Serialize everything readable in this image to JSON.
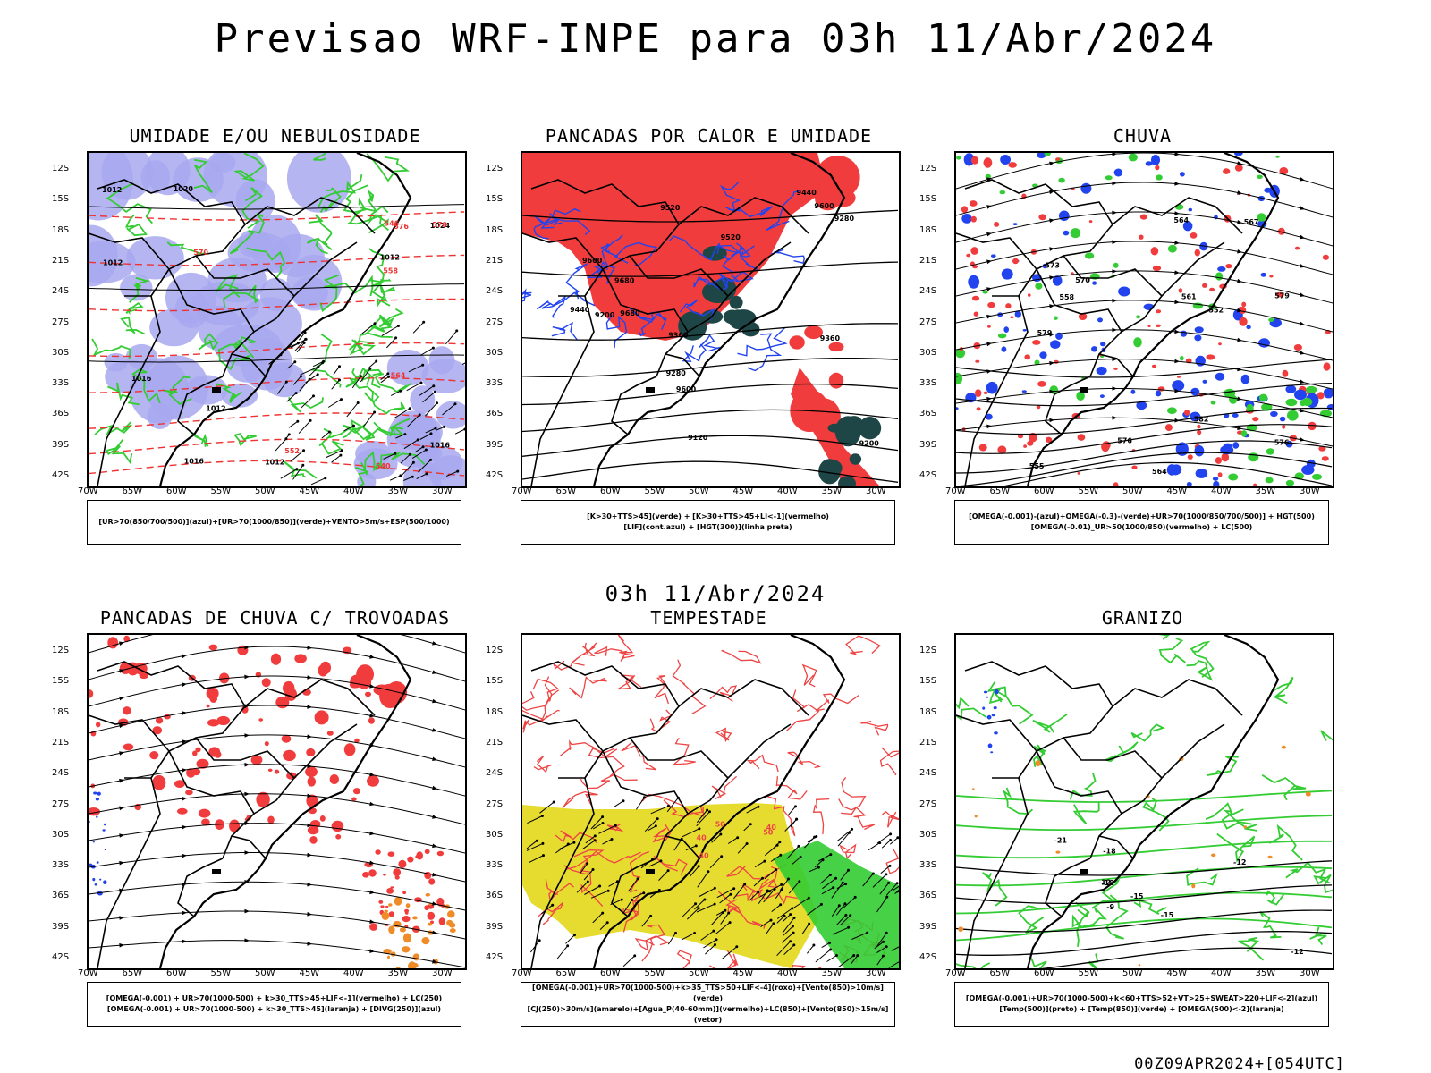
{
  "header": {
    "title": "Previsao WRF-INPE  para 03h 11/Abr/2024"
  },
  "mid": {
    "title": "03h 11/Abr/2024"
  },
  "footer": {
    "run": "00Z09APR2024+[054UTC]"
  },
  "axes": {
    "lat": [
      "12S",
      "15S",
      "18S",
      "21S",
      "24S",
      "27S",
      "30S",
      "33S",
      "36S",
      "39S",
      "42S"
    ],
    "lon": [
      "70W",
      "65W",
      "60W",
      "55W",
      "50W",
      "45W",
      "40W",
      "35W",
      "30W"
    ]
  },
  "colors": {
    "red": "#f03c3c",
    "green": "#33cc33",
    "blue": "#2244ee",
    "lavender": "#a8a8f0",
    "yellow": "#e6dc30",
    "darkteal": "#1e4646",
    "orange": "#f08c28"
  },
  "panels": [
    {
      "id": "umidade",
      "title": "UMIDADE E/OU NEBULOSIDADE",
      "legend": [
        "[UR>70(850/700/500)](azul)+[UR>70(1000/850)](verde)+VENTO>5m/s+ESP(500/1000)"
      ],
      "labels": [
        "1012",
        "1012",
        "1012",
        "1012",
        "1012",
        "1016",
        "1016",
        "1016",
        "1020",
        "1024",
        "576",
        "570",
        "570",
        "564",
        "558",
        "552",
        "546",
        "540"
      ]
    },
    {
      "id": "pancadas-calor",
      "title": "PANCADAS POR CALOR E UMIDADE",
      "legend": [
        "[K>30+TTS>45](verde) + [K>30+TTS>45+LI<-1](vermelho)",
        "[LIF](cont.azul) + [HGT(300)](linha preta)"
      ],
      "labels": [
        "9680",
        "9680",
        "9600",
        "9600",
        "9600",
        "9520",
        "9520",
        "9440",
        "9440",
        "9360",
        "9360",
        "9280",
        "9280",
        "9200",
        "9200",
        "9120"
      ]
    },
    {
      "id": "chuva",
      "title": "CHUVA",
      "legend": [
        "[OMEGA(-0.001)-(azul)+OMEGA(-0.3)-(verde)+UR>70(1000/850/700/500)] + HGT(500)",
        "[OMEGA(-0.01)_UR>50(1000/850)(vermelho) + LC(500)"
      ],
      "labels": [
        "582",
        "579",
        "579",
        "576",
        "576",
        "573",
        "570",
        "567",
        "564",
        "561",
        "558",
        "555",
        "552",
        "564"
      ]
    },
    {
      "id": "trovoadas",
      "title": "PANCADAS DE CHUVA C/ TROVOADAS",
      "legend": [
        "[OMEGA(-0.001) + UR>70(1000-500) + k>30_TTS>45+LIF<-1](vermelho) + LC(250)",
        "[OMEGA(-0.001) + UR>70(1000-500) + k>30_TTS>45](laranja) + [DIVG(250)](azul)"
      ],
      "labels": []
    },
    {
      "id": "tempestade",
      "title": "TEMPESTADE",
      "legend": [
        "[OMEGA(-0.001)+UR>70(1000-500)+k>35_TTS>50+LIF<-4](roxo)+[Vento(850)>10m/s](verde)",
        "[CJ(250)>30m/s](amarelo)+[Agua_P(40-60mm)](vermelho)+LC(850)+[Vento(850)>15m/s](vetor)"
      ],
      "labels": [
        "40",
        "50",
        "50",
        "40",
        "40"
      ]
    },
    {
      "id": "granizo",
      "title": "GRANIZO",
      "legend": [
        "[OMEGA(-0.001)+UR>70(1000-500)+k<60+TTS>52+VT>25+SWEAT>220+LIF<-2](azul)",
        "[Temp(500)](preto) + [Temp(850)](verde) + [OMEGA(500)<-2](laranja)"
      ],
      "labels": [
        "-12",
        "-15",
        "-18",
        "-21",
        "-18",
        "-15",
        "-12",
        "-9",
        "-12"
      ]
    }
  ]
}
